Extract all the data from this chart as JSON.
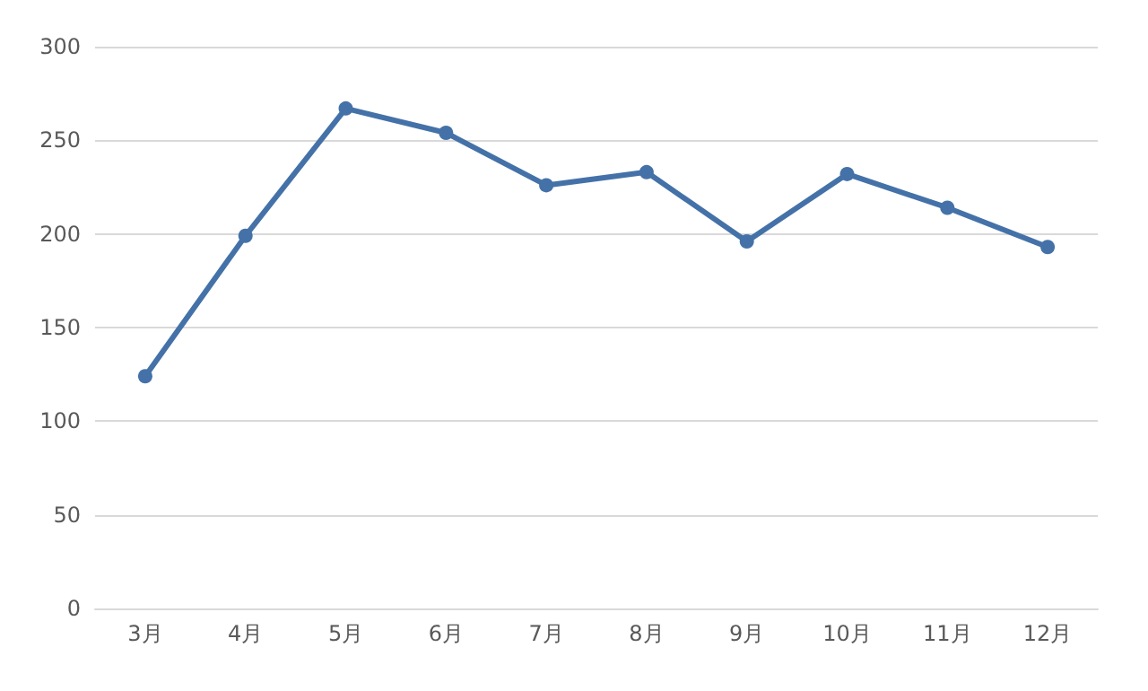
{
  "chart_data": {
    "type": "line",
    "categories": [
      "3月",
      "4月",
      "5月",
      "6月",
      "7月",
      "8月",
      "9月",
      "10月",
      "11月",
      "12月"
    ],
    "series": [
      {
        "color": "#4472a8",
        "values": [
          124,
          199,
          267,
          254,
          226,
          233,
          196,
          232,
          214,
          193
        ]
      }
    ],
    "ylim": [
      0,
      300
    ],
    "yticks": [
      0,
      50,
      100,
      150,
      200,
      250,
      300
    ],
    "grid": "y",
    "marker": "circle",
    "line_style": "solid"
  }
}
